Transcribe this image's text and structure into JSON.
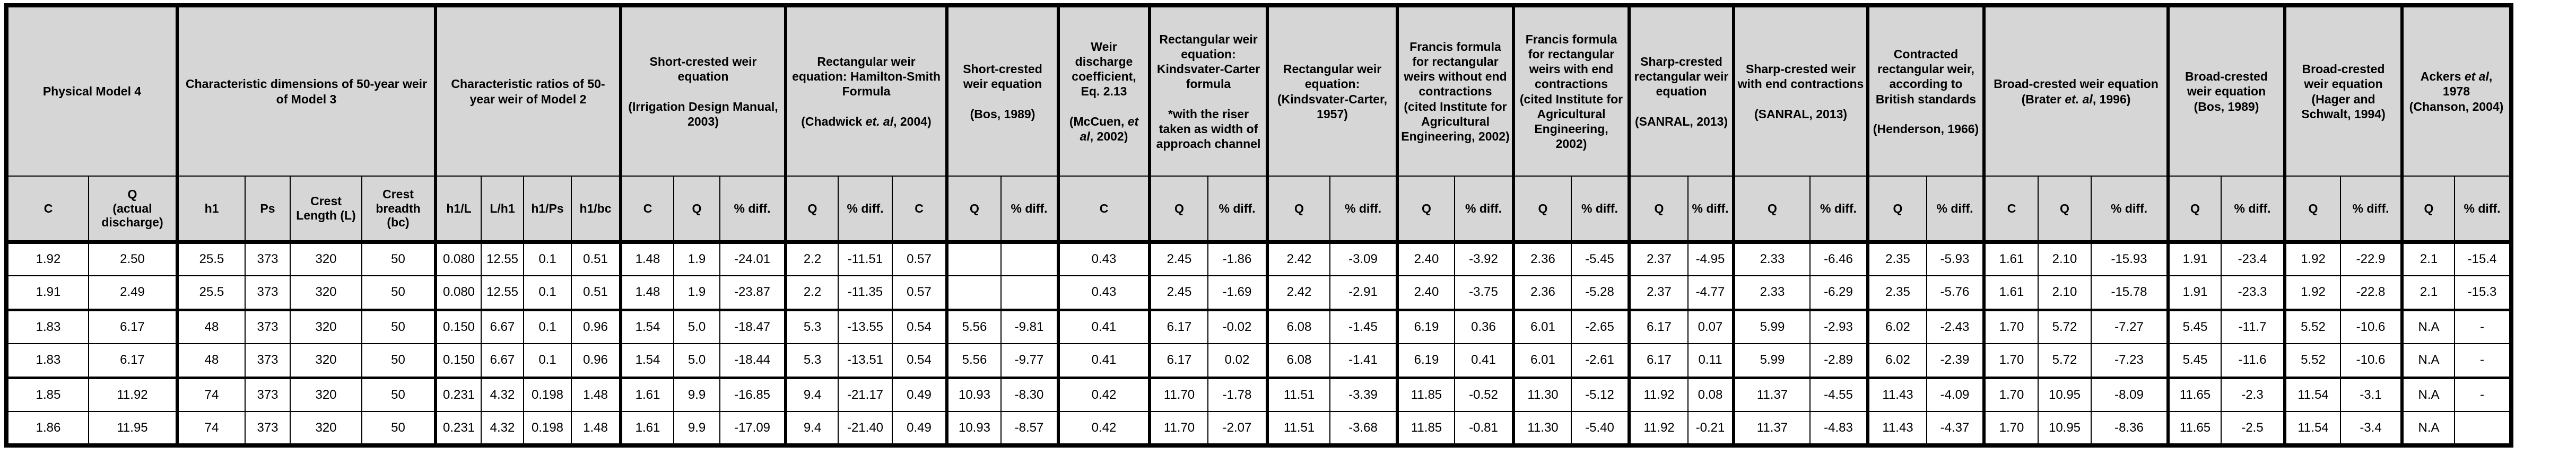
{
  "table": {
    "groups": [
      {
        "title": "Physical Model 4",
        "columns": [
          "C",
          "Q\n(actual discharge)"
        ]
      },
      {
        "title": "Characteristic dimensions of 50-year weir of Model 3",
        "columns": [
          "h1",
          "Ps",
          "Crest Length (L)",
          "Crest breadth (bc)"
        ]
      },
      {
        "title": "Characteristic ratios of 50-year weir of Model 2",
        "columns": [
          "h1/L",
          "L/h1",
          "h1/Ps",
          "h1/bc"
        ]
      },
      {
        "title": "Short-crested weir equation\n\n(Irrigation Design Manual, 2003)",
        "columns": [
          "C",
          "Q",
          "% diff."
        ]
      },
      {
        "title": "Rectangular weir equation: Hamilton-Smith Formula\n\n(Chadwick et. al, 2004)",
        "columns": [
          "Q",
          "% diff.",
          "C"
        ]
      },
      {
        "title": "Short-crested weir equation\n\n(Bos, 1989)",
        "columns": [
          "Q",
          "% diff."
        ]
      },
      {
        "title": "Weir discharge coefficient, Eq. 2.13\n\n(McCuen, et al, 2002)",
        "columns": [
          "C"
        ]
      },
      {
        "title": "Rectangular weir equation: Kindsvater-Carter formula\n\n*with the riser taken as width of approach channel",
        "columns": [
          "Q",
          "% diff."
        ]
      },
      {
        "title": "Rectangular weir equation: (Kindsvater-Carter, 1957)",
        "columns": [
          "Q",
          "% diff."
        ]
      },
      {
        "title": "Francis formula for rectangular weirs without end contractions (cited Institute for Agricultural Engineering, 2002)",
        "columns": [
          "Q",
          "% diff."
        ]
      },
      {
        "title": "Francis formula for rectangular weirs with end contractions (cited Institute for Agricultural Engineering, 2002)",
        "columns": [
          "Q",
          "% diff."
        ]
      },
      {
        "title": "Sharp-crested rectangular weir equation\n\n(SANRAL, 2013)",
        "columns": [
          "Q",
          "% diff."
        ]
      },
      {
        "title": "Sharp-crested weir with end contractions\n\n(SANRAL, 2013)",
        "columns": [
          "Q",
          "% diff."
        ]
      },
      {
        "title": "Contracted rectangular weir, according to British standards\n\n(Henderson, 1966)",
        "columns": [
          "Q",
          "% diff."
        ]
      },
      {
        "title": "Broad-crested weir equation\n(Brater et. al, 1996)",
        "columns": [
          "C",
          "Q",
          "% diff."
        ]
      },
      {
        "title": "Broad-crested weir equation\n(Bos, 1989)",
        "columns": [
          "Q",
          "% diff."
        ]
      },
      {
        "title": "Broad-crested weir equation\n(Hager and Schwalt, 1994)",
        "columns": [
          "Q",
          "% diff."
        ]
      },
      {
        "title": "Ackers et al, 1978\n(Chanson, 2004)",
        "columns": [
          "Q",
          "% diff."
        ]
      }
    ],
    "rows": [
      [
        "1.92",
        "2.50",
        "25.5",
        "373",
        "320",
        "50",
        "0.080",
        "12.55",
        "0.1",
        "0.51",
        "1.48",
        "1.9",
        "-24.01",
        "2.2",
        "-11.51",
        "0.57",
        "",
        "",
        "0.43",
        "2.45",
        "-1.86",
        "2.42",
        "-3.09",
        "2.40",
        "-3.92",
        "2.36",
        "-5.45",
        "2.37",
        "-4.95",
        "2.33",
        "-6.46",
        "2.35",
        "-5.93",
        "1.61",
        "2.10",
        "-15.93",
        "1.91",
        "-23.4",
        "1.92",
        "-22.9",
        "2.1",
        "-15.4"
      ],
      [
        "1.91",
        "2.49",
        "25.5",
        "373",
        "320",
        "50",
        "0.080",
        "12.55",
        "0.1",
        "0.51",
        "1.48",
        "1.9",
        "-23.87",
        "2.2",
        "-11.35",
        "0.57",
        "",
        "",
        "0.43",
        "2.45",
        "-1.69",
        "2.42",
        "-2.91",
        "2.40",
        "-3.75",
        "2.36",
        "-5.28",
        "2.37",
        "-4.77",
        "2.33",
        "-6.29",
        "2.35",
        "-5.76",
        "1.61",
        "2.10",
        "-15.78",
        "1.91",
        "-23.3",
        "1.92",
        "-22.8",
        "2.1",
        "-15.3"
      ],
      [
        "1.83",
        "6.17",
        "48",
        "373",
        "320",
        "50",
        "0.150",
        "6.67",
        "0.1",
        "0.96",
        "1.54",
        "5.0",
        "-18.47",
        "5.3",
        "-13.55",
        "0.54",
        "5.56",
        "-9.81",
        "0.41",
        "6.17",
        "-0.02",
        "6.08",
        "-1.45",
        "6.19",
        "0.36",
        "6.01",
        "-2.65",
        "6.17",
        "0.07",
        "5.99",
        "-2.93",
        "6.02",
        "-2.43",
        "1.70",
        "5.72",
        "-7.27",
        "5.45",
        "-11.7",
        "5.52",
        "-10.6",
        "N.A",
        "-"
      ],
      [
        "1.83",
        "6.17",
        "48",
        "373",
        "320",
        "50",
        "0.150",
        "6.67",
        "0.1",
        "0.96",
        "1.54",
        "5.0",
        "-18.44",
        "5.3",
        "-13.51",
        "0.54",
        "5.56",
        "-9.77",
        "0.41",
        "6.17",
        "0.02",
        "6.08",
        "-1.41",
        "6.19",
        "0.41",
        "6.01",
        "-2.61",
        "6.17",
        "0.11",
        "5.99",
        "-2.89",
        "6.02",
        "-2.39",
        "1.70",
        "5.72",
        "-7.23",
        "5.45",
        "-11.6",
        "5.52",
        "-10.6",
        "N.A",
        "-"
      ],
      [
        "1.85",
        "11.92",
        "74",
        "373",
        "320",
        "50",
        "0.231",
        "4.32",
        "0.198",
        "1.48",
        "1.61",
        "9.9",
        "-16.85",
        "9.4",
        "-21.17",
        "0.49",
        "10.93",
        "-8.30",
        "0.42",
        "11.70",
        "-1.78",
        "11.51",
        "-3.39",
        "11.85",
        "-0.52",
        "11.30",
        "-5.12",
        "11.92",
        "0.08",
        "11.37",
        "-4.55",
        "11.43",
        "-4.09",
        "1.70",
        "10.95",
        "-8.09",
        "11.65",
        "-2.3",
        "11.54",
        "-3.1",
        "N.A",
        "-"
      ],
      [
        "1.86",
        "11.95",
        "74",
        "373",
        "320",
        "50",
        "0.231",
        "4.32",
        "0.198",
        "1.48",
        "1.61",
        "9.9",
        "-17.09",
        "9.4",
        "-21.40",
        "0.49",
        "10.93",
        "-8.57",
        "0.42",
        "11.70",
        "-2.07",
        "11.51",
        "-3.68",
        "11.85",
        "-0.81",
        "11.30",
        "-5.40",
        "11.92",
        "-0.21",
        "11.37",
        "-4.83",
        "11.43",
        "-4.37",
        "1.70",
        "10.95",
        "-8.36",
        "11.65",
        "-2.5",
        "11.54",
        "-3.4",
        "N.A",
        ""
      ]
    ]
  },
  "colors": {
    "header_bg": "#d6d6d6",
    "border": "#000000",
    "cell_bg": "#ffffff"
  }
}
